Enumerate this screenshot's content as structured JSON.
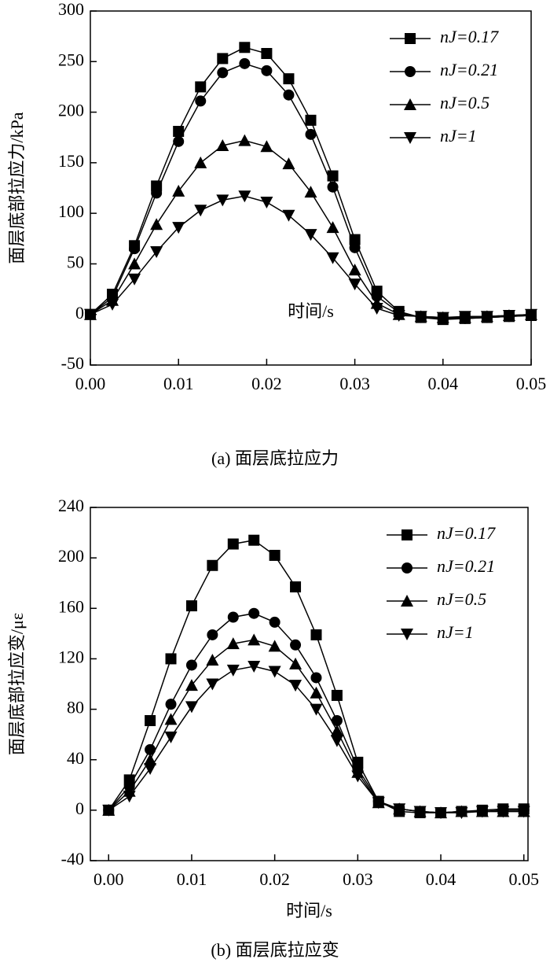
{
  "chart_data": [
    {
      "type": "line",
      "caption": "(a) 面层底拉应力",
      "xlabel": "时间/s",
      "ylabel": "面层底部拉应力/kPa",
      "x": [
        0,
        0.0025,
        0.005,
        0.0075,
        0.01,
        0.0125,
        0.015,
        0.0175,
        0.02,
        0.0225,
        0.025,
        0.0275,
        0.03,
        0.0325,
        0.035,
        0.0375,
        0.04,
        0.0425,
        0.045,
        0.0475,
        0.05
      ],
      "xlim": [
        0,
        0.05
      ],
      "xticks": [
        {
          "value": 0,
          "label": "0.00"
        },
        {
          "value": 0.01,
          "label": "0.01"
        },
        {
          "value": 0.02,
          "label": "0.02"
        },
        {
          "value": 0.03,
          "label": "0.03"
        },
        {
          "value": 0.04,
          "label": "0.04"
        },
        {
          "value": 0.05,
          "label": "0.05"
        }
      ],
      "ylim": [
        -50,
        300
      ],
      "yticks": [
        -50,
        0,
        50,
        100,
        150,
        200,
        250,
        300
      ],
      "legend": "upper right",
      "series": [
        {
          "name": "nJ=0.17",
          "color": "#000000",
          "marker": "square",
          "values": [
            0,
            20,
            68,
            127,
            181,
            225,
            253,
            264,
            258,
            233,
            192,
            137,
            74,
            23,
            3,
            -3,
            -5,
            -4,
            -3,
            -2,
            -1
          ]
        },
        {
          "name": "nJ=0.21",
          "color": "#000000",
          "marker": "circle",
          "values": [
            0,
            17,
            65,
            120,
            171,
            211,
            239,
            248,
            241,
            217,
            178,
            126,
            66,
            18,
            2,
            -3,
            -4,
            -4,
            -3,
            -2,
            -1
          ]
        },
        {
          "name": "nJ=0.5",
          "color": "#000000",
          "marker": "triangle-up",
          "values": [
            0,
            14,
            50,
            89,
            122,
            150,
            167,
            172,
            166,
            149,
            121,
            86,
            44,
            11,
            0,
            -2,
            -3,
            -3,
            -2,
            -1,
            0
          ]
        },
        {
          "name": "nJ=1",
          "color": "#000000",
          "marker": "triangle-down",
          "values": [
            0,
            10,
            35,
            62,
            86,
            103,
            113,
            117,
            111,
            98,
            79,
            56,
            30,
            6,
            -1,
            -2,
            -3,
            -2,
            -2,
            -1,
            0
          ]
        }
      ]
    },
    {
      "type": "line",
      "caption": "(b) 面层底拉应变",
      "xlabel": "时间/s",
      "ylabel": "面层底部拉应变/με",
      "x": [
        0,
        0.0025,
        0.005,
        0.0075,
        0.01,
        0.0125,
        0.015,
        0.0175,
        0.02,
        0.0225,
        0.025,
        0.0275,
        0.03,
        0.0325,
        0.035,
        0.0375,
        0.04,
        0.0425,
        0.045,
        0.0475,
        0.05
      ],
      "xlim": [
        -0.0022,
        0.0505
      ],
      "xticks": [
        {
          "value": 0,
          "label": "0.00"
        },
        {
          "value": 0.01,
          "label": "0.01"
        },
        {
          "value": 0.02,
          "label": "0.02"
        },
        {
          "value": 0.03,
          "label": "0.03"
        },
        {
          "value": 0.04,
          "label": "0.04"
        },
        {
          "value": 0.05,
          "label": "0.05"
        }
      ],
      "ylim": [
        -40,
        240
      ],
      "yticks": [
        -40,
        0,
        40,
        80,
        120,
        160,
        200,
        240
      ],
      "legend": "upper right",
      "series": [
        {
          "name": "nJ=0.17",
          "color": "#000000",
          "marker": "square",
          "values": [
            0,
            24,
            71,
            120,
            162,
            194,
            211,
            214,
            202,
            177,
            139,
            91,
            38,
            7,
            -1,
            -2,
            -2,
            -1,
            0,
            1,
            1
          ]
        },
        {
          "name": "nJ=0.21",
          "color": "#000000",
          "marker": "circle",
          "values": [
            0,
            19,
            48,
            84,
            115,
            139,
            153,
            156,
            149,
            131,
            105,
            71,
            33,
            7,
            1,
            -1,
            -2,
            -1,
            -1,
            0,
            0
          ]
        },
        {
          "name": "nJ=0.5",
          "color": "#000000",
          "marker": "triangle-up",
          "values": [
            0,
            15,
            40,
            72,
            99,
            119,
            132,
            135,
            130,
            116,
            93,
            63,
            30,
            6,
            1,
            -1,
            -2,
            -1,
            -1,
            -1,
            -1
          ]
        },
        {
          "name": "nJ=1",
          "color": "#000000",
          "marker": "triangle-down",
          "values": [
            0,
            11,
            33,
            58,
            82,
            100,
            111,
            114,
            110,
            99,
            80,
            55,
            27,
            6,
            1,
            -1,
            -2,
            -2,
            -1,
            -1,
            -1
          ]
        }
      ]
    }
  ]
}
